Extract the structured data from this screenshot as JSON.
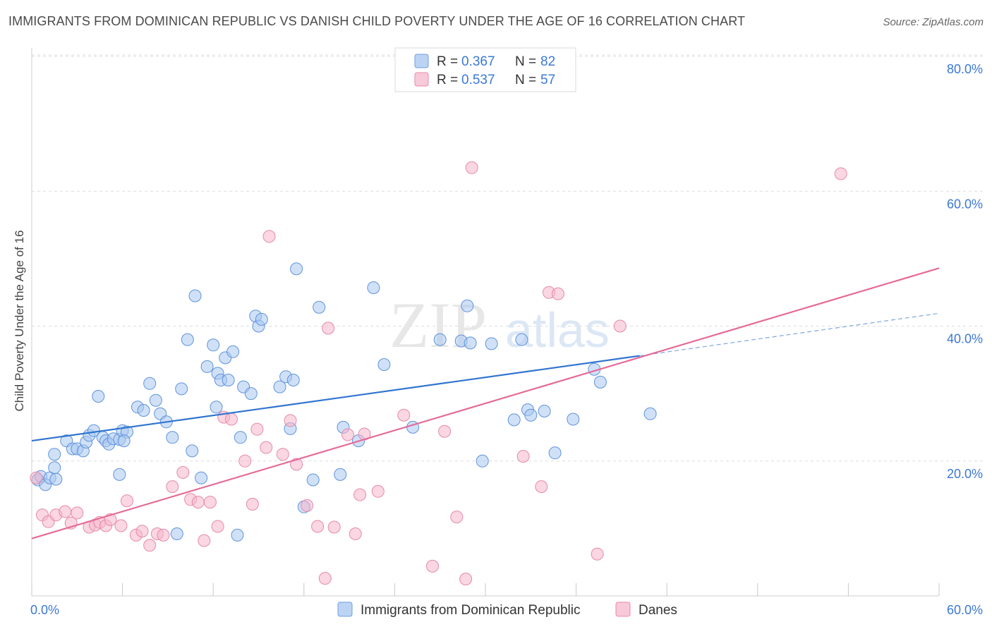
{
  "title": "IMMIGRANTS FROM DOMINICAN REPUBLIC VS DANISH CHILD POVERTY UNDER THE AGE OF 16 CORRELATION CHART",
  "source": "Source: ZipAtlas.com",
  "watermark": {
    "zip": "ZIP",
    "atlas": "atlas"
  },
  "colors": {
    "blue": "#2f74d0",
    "blue_fill": "#a9c8f0",
    "pink": "#e56b98",
    "pink_fill": "#f5b6cb",
    "tick_text": "#3b78d6"
  },
  "legend": {
    "rows": [
      {
        "r_label": "R = ",
        "r": "0.367",
        "n_label": "N = ",
        "n": "82"
      },
      {
        "r_label": "R = ",
        "r": "0.537",
        "n_label": "N = ",
        "n": "57"
      }
    ]
  },
  "bottom_legend": [
    "Immigrants from Dominican Republic",
    "Danes"
  ],
  "chart_data": {
    "type": "scatter",
    "title": "IMMIGRANTS FROM DOMINICAN REPUBLIC VS DANISH CHILD POVERTY UNDER THE AGE OF 16 CORRELATION CHART",
    "xlabel": "",
    "ylabel": "Child Poverty Under the Age of 16",
    "xlim": [
      0,
      60
    ],
    "ylim": [
      0,
      85
    ],
    "x_tick_labels": [
      "0.0%",
      "60.0%"
    ],
    "y_ticks": [
      20,
      40,
      60,
      80
    ],
    "y_tick_labels": [
      "20.0%",
      "40.0%",
      "60.0%",
      "80.0%"
    ],
    "grid": true,
    "legend_position": "top-center",
    "series": [
      {
        "name": "Immigrants from Dominican Republic",
        "r": 0.367,
        "n": 82,
        "trend": {
          "x0": 0,
          "y0": 23.0,
          "x1": 40.2,
          "y1": 35.6,
          "dashed_to_x": 60,
          "dashed_to_y": 41.9
        },
        "points": [
          [
            0.4,
            17.2
          ],
          [
            0.6,
            17.7
          ],
          [
            0.9,
            16.5
          ],
          [
            1.2,
            17.5
          ],
          [
            1.5,
            19.0
          ],
          [
            1.6,
            17.3
          ],
          [
            1.5,
            21.0
          ],
          [
            2.3,
            23.0
          ],
          [
            2.7,
            21.8
          ],
          [
            3.0,
            21.8
          ],
          [
            3.4,
            21.5
          ],
          [
            3.6,
            22.8
          ],
          [
            3.8,
            23.8
          ],
          [
            4.1,
            24.5
          ],
          [
            4.4,
            29.6
          ],
          [
            4.7,
            23.5
          ],
          [
            4.9,
            23.0
          ],
          [
            5.1,
            22.5
          ],
          [
            5.4,
            23.3
          ],
          [
            5.8,
            23.2
          ],
          [
            6.0,
            24.5
          ],
          [
            6.3,
            24.3
          ],
          [
            6.1,
            23.0
          ],
          [
            5.8,
            18.0
          ],
          [
            7.0,
            28.0
          ],
          [
            7.4,
            27.5
          ],
          [
            7.8,
            31.5
          ],
          [
            8.2,
            29.0
          ],
          [
            8.5,
            27.0
          ],
          [
            8.9,
            25.8
          ],
          [
            9.3,
            23.5
          ],
          [
            9.6,
            9.2
          ],
          [
            9.9,
            30.7
          ],
          [
            10.3,
            38.0
          ],
          [
            10.6,
            21.5
          ],
          [
            10.8,
            44.5
          ],
          [
            11.2,
            17.5
          ],
          [
            11.6,
            34.0
          ],
          [
            12.0,
            37.2
          ],
          [
            12.2,
            28.0
          ],
          [
            12.3,
            33.0
          ],
          [
            12.5,
            32.0
          ],
          [
            12.8,
            35.3
          ],
          [
            13.0,
            32.0
          ],
          [
            13.3,
            36.2
          ],
          [
            13.6,
            9.0
          ],
          [
            13.8,
            23.5
          ],
          [
            14.0,
            31.0
          ],
          [
            14.5,
            30.0
          ],
          [
            14.8,
            41.5
          ],
          [
            15.0,
            40.0
          ],
          [
            15.2,
            41.0
          ],
          [
            16.4,
            31.0
          ],
          [
            16.8,
            32.5
          ],
          [
            17.1,
            24.8
          ],
          [
            17.3,
            32.0
          ],
          [
            17.5,
            48.5
          ],
          [
            18.0,
            13.2
          ],
          [
            18.6,
            17.2
          ],
          [
            19.0,
            42.8
          ],
          [
            20.4,
            18.0
          ],
          [
            20.6,
            25.0
          ],
          [
            21.6,
            23.0
          ],
          [
            22.6,
            45.7
          ],
          [
            23.3,
            34.3
          ],
          [
            25.2,
            25.0
          ],
          [
            27.0,
            38.0
          ],
          [
            28.4,
            37.8
          ],
          [
            28.8,
            43.0
          ],
          [
            29.0,
            37.5
          ],
          [
            29.8,
            20.0
          ],
          [
            30.4,
            37.4
          ],
          [
            31.9,
            26.1
          ],
          [
            32.4,
            38.0
          ],
          [
            32.8,
            27.6
          ],
          [
            33.0,
            26.8
          ],
          [
            33.9,
            27.4
          ],
          [
            34.6,
            21.2
          ],
          [
            35.8,
            26.2
          ],
          [
            37.2,
            33.6
          ],
          [
            37.6,
            31.7
          ],
          [
            40.9,
            27.0
          ]
        ]
      },
      {
        "name": "Danes",
        "r": 0.537,
        "n": 57,
        "trend": {
          "x0": 0,
          "y0": 8.5,
          "x1": 60,
          "y1": 48.6
        },
        "points": [
          [
            0.3,
            17.5
          ],
          [
            0.7,
            12.0
          ],
          [
            1.1,
            11.0
          ],
          [
            1.6,
            12.0
          ],
          [
            2.2,
            12.5
          ],
          [
            2.6,
            10.8
          ],
          [
            3.0,
            12.3
          ],
          [
            3.8,
            10.2
          ],
          [
            4.2,
            10.5
          ],
          [
            4.5,
            10.9
          ],
          [
            4.9,
            10.4
          ],
          [
            5.2,
            11.3
          ],
          [
            5.9,
            10.4
          ],
          [
            6.3,
            14.1
          ],
          [
            6.9,
            9.0
          ],
          [
            7.3,
            9.6
          ],
          [
            7.8,
            7.5
          ],
          [
            8.3,
            9.2
          ],
          [
            8.7,
            9.0
          ],
          [
            9.3,
            16.2
          ],
          [
            10.0,
            18.3
          ],
          [
            10.5,
            14.3
          ],
          [
            11.0,
            13.9
          ],
          [
            11.4,
            8.2
          ],
          [
            11.8,
            13.9
          ],
          [
            12.3,
            10.3
          ],
          [
            12.7,
            26.5
          ],
          [
            13.2,
            26.2
          ],
          [
            14.1,
            20.0
          ],
          [
            14.6,
            13.6
          ],
          [
            14.9,
            24.7
          ],
          [
            15.5,
            22.0
          ],
          [
            15.7,
            53.3
          ],
          [
            16.6,
            21.0
          ],
          [
            17.1,
            26.0
          ],
          [
            17.5,
            19.5
          ],
          [
            18.2,
            13.4
          ],
          [
            18.9,
            10.3
          ],
          [
            19.4,
            2.6
          ],
          [
            19.6,
            39.7
          ],
          [
            20.0,
            10.2
          ],
          [
            20.9,
            23.9
          ],
          [
            21.4,
            9.2
          ],
          [
            21.7,
            15.0
          ],
          [
            22.0,
            24.0
          ],
          [
            22.9,
            15.5
          ],
          [
            24.6,
            26.8
          ],
          [
            26.5,
            4.4
          ],
          [
            27.3,
            24.4
          ],
          [
            28.1,
            11.7
          ],
          [
            28.7,
            2.5
          ],
          [
            29.1,
            63.5
          ],
          [
            32.5,
            20.7
          ],
          [
            33.7,
            16.2
          ],
          [
            34.2,
            45.0
          ],
          [
            34.8,
            44.8
          ],
          [
            37.4,
            6.2
          ],
          [
            38.9,
            40.0
          ],
          [
            53.5,
            62.6
          ]
        ]
      }
    ]
  }
}
